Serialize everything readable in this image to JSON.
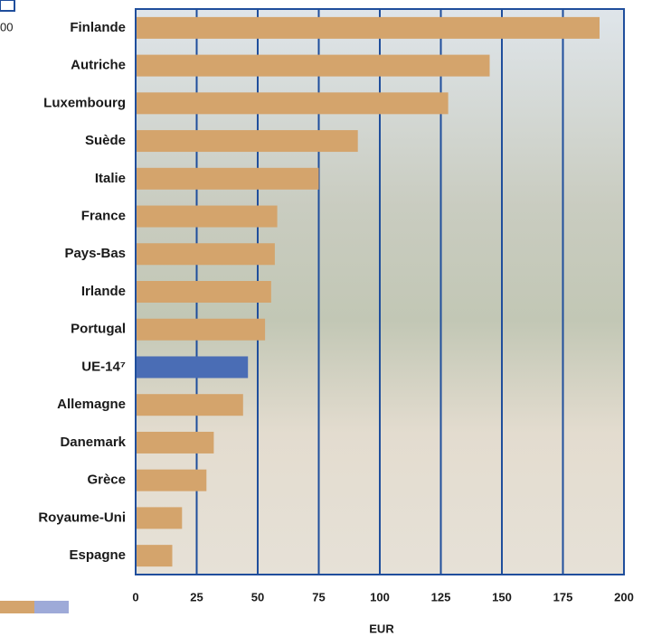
{
  "chart_data": {
    "type": "barh",
    "categories": [
      "Finlande",
      "Autriche",
      "Luxembourg",
      "Suède",
      "Italie",
      "France",
      "Pays-Bas",
      "Irlande",
      "Portugal",
      "UE-14⁷",
      "Allemagne",
      "Danemark",
      "Grèce",
      "Royaume-Uni",
      "Espagne"
    ],
    "values": [
      190,
      145,
      128,
      91,
      75,
      58,
      57,
      55.5,
      53,
      46,
      44,
      32,
      29,
      19,
      15
    ],
    "colors": [
      "#d4a46c",
      "#d4a46c",
      "#d4a46c",
      "#d4a46c",
      "#d4a46c",
      "#d4a46c",
      "#d4a46c",
      "#d4a46c",
      "#d4a46c",
      "#4a6db5",
      "#d4a46c",
      "#d4a46c",
      "#d4a46c",
      "#d4a46c",
      "#d4a46c"
    ],
    "xlim": [
      0,
      200
    ],
    "xticks": [
      0,
      25,
      50,
      75,
      100,
      125,
      150,
      175,
      200
    ],
    "xlabel": "EUR",
    "grid": true,
    "grid_color": "#1f4e9c",
    "fragment_text": "00"
  }
}
